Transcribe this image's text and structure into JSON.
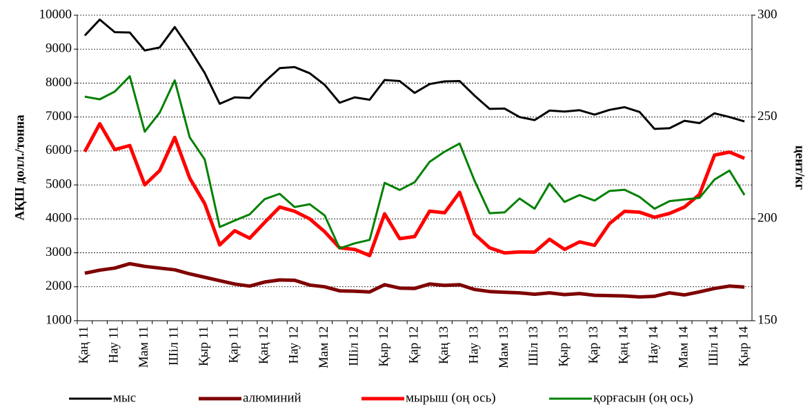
{
  "chart_data": {
    "type": "line",
    "y_label": "АҚШ долл./тонна",
    "y2_label": "цент/кг",
    "categories": [
      "Қаң 11",
      null,
      "Нау 11",
      null,
      "Мам 11",
      null,
      "Шіл 11",
      null,
      "Қыр 11",
      null,
      "Қар 11",
      null,
      "Қаң 12",
      null,
      "Нау 12",
      null,
      "Мам 12",
      null,
      "Шіл 12",
      null,
      "Қыр 12",
      null,
      "Қар 12",
      null,
      "Қаң 13",
      null,
      "Нау 13",
      null,
      "Мам 13",
      null,
      "Шіл 13",
      null,
      "Қыр 13",
      null,
      "Қар 13",
      null,
      "Қаң 14",
      null,
      "Нау 14",
      null,
      "Мам 14",
      null,
      "Шіл 14",
      null,
      "Қыр 14"
    ],
    "ylim": [
      1000,
      10000
    ],
    "yticks": [
      1000,
      2000,
      3000,
      4000,
      5000,
      6000,
      7000,
      8000,
      9000,
      10000
    ],
    "y2lim": [
      150,
      300
    ],
    "y2ticks": [
      150,
      200,
      250,
      300
    ],
    "grid": true,
    "legend": "bottom",
    "series": [
      {
        "name": "мыс",
        "color": "#000000",
        "values": [
          9400,
          9870,
          9500,
          9490,
          8960,
          9050,
          9650,
          9000,
          8300,
          7390,
          7580,
          7560,
          8040,
          8440,
          8470,
          8290,
          7950,
          7420,
          7580,
          7510,
          8090,
          8060,
          7710,
          7970,
          8050,
          8060,
          7630,
          7240,
          7250,
          7000,
          6910,
          7190,
          7160,
          7200,
          7070,
          7210,
          7290,
          7150,
          6650,
          6670,
          6890,
          6820,
          7110,
          7000,
          6870
        ]
      },
      {
        "name": "алюминий",
        "color": "#7f0000",
        "values": [
          2400,
          2490,
          2550,
          2680,
          2600,
          2550,
          2500,
          2380,
          2280,
          2180,
          2080,
          2020,
          2140,
          2200,
          2190,
          2050,
          2000,
          1880,
          1870,
          1850,
          2060,
          1960,
          1950,
          2080,
          2040,
          2060,
          1920,
          1860,
          1840,
          1820,
          1780,
          1820,
          1770,
          1800,
          1750,
          1740,
          1730,
          1700,
          1720,
          1820,
          1760,
          1850,
          1950,
          2020,
          1990
        ]
      },
      {
        "name": "мырыш (оң ось)",
        "color": "#ff0000",
        "axis": "y2",
        "values": [
          233,
          246.7,
          234,
          236,
          216.7,
          223.7,
          240,
          220,
          207.5,
          187.2,
          194.2,
          190.5,
          198.3,
          205.8,
          203.7,
          200,
          193.7,
          185.8,
          185,
          182,
          202.5,
          190.3,
          191.3,
          203.8,
          203,
          213,
          192.5,
          185.8,
          183.3,
          183.8,
          183.7,
          190,
          185,
          188.7,
          187,
          197.7,
          203.7,
          203.3,
          200.8,
          202.7,
          205.8,
          212,
          231.3,
          232.8,
          229.7
        ]
      },
      {
        "name": "қорғасын (оң ось)",
        "color": "#008000",
        "axis": "y2",
        "values": [
          260,
          258.7,
          262.5,
          270,
          242.8,
          252.2,
          268,
          240,
          229.2,
          196,
          199.2,
          202.2,
          209.7,
          212.3,
          205.8,
          207.2,
          201.7,
          185.5,
          188,
          189.7,
          217.7,
          214.2,
          218,
          228,
          233,
          237,
          218.7,
          202.8,
          203.2,
          210,
          205,
          217.3,
          208.3,
          211.7,
          209,
          213.7,
          214.3,
          210.8,
          205,
          208.7,
          209.5,
          210.3,
          219.3,
          223.7,
          211.7
        ]
      }
    ]
  }
}
